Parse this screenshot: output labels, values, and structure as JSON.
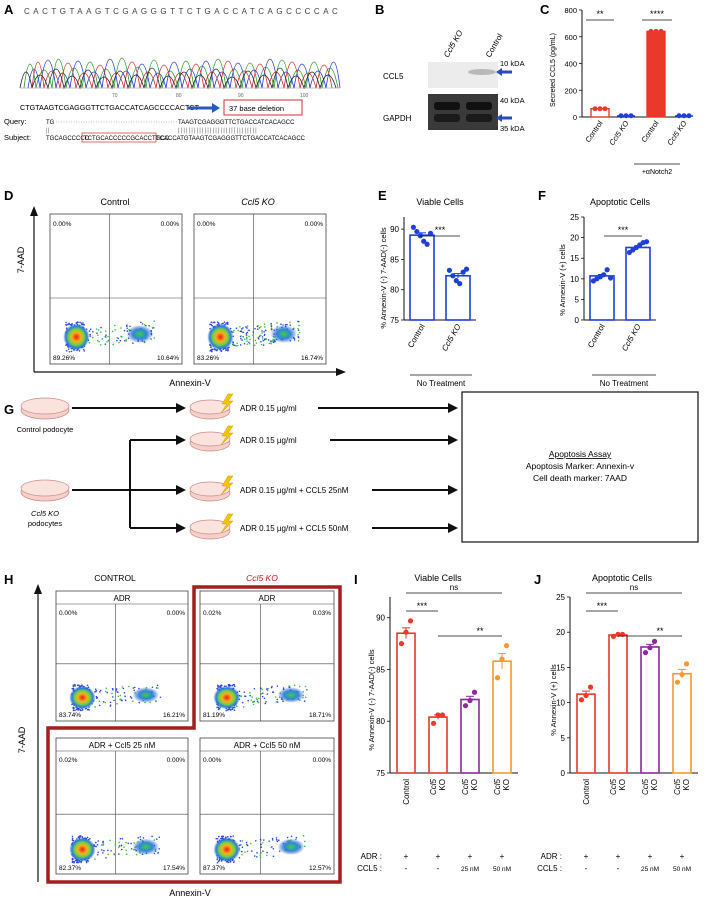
{
  "panel_labels": {
    "A": "A",
    "B": "B",
    "C": "C",
    "D": "D",
    "E": "E",
    "F": "F",
    "G": "G",
    "H": "H",
    "I": "I",
    "J": "J"
  },
  "panelA": {
    "sequence_top": "CACTGTAAGTCGAGGGTTCTGACCATCAGCCCCAC",
    "ticks": [
      "70",
      "80",
      "90",
      "100"
    ],
    "read": "CTGTAAGTCGAGGGTTCTGACCATCAGCCCCACTCT",
    "deletion_label": "37 base deletion",
    "query_label": "Query:",
    "subject_label": "Subject:",
    "query_seq_left": "TG",
    "query_seq_right": "TAAGTCGAGGGTTCTGACCATCACAGCC",
    "subject_seq_left": "TGCAGCCCCC",
    "subject_seq_boxed": "TCTGCACCCCCGCACCTGCC",
    "subject_seq_right": "TCACCATGTAAGTCGAGGGTTCTGACCATCACAGCC"
  },
  "panelB": {
    "lanes": [
      "Ccl5 KO",
      "Control"
    ],
    "row1": "CCL5",
    "row2": "GAPDH",
    "marker1": "10 kDA",
    "marker2": "40 kDA",
    "marker3": "35 kDA"
  },
  "panelC": {
    "ylabel": "Secreted CCL5 (pg/mL)",
    "yticks": [
      "0",
      "200",
      "400",
      "600",
      "800"
    ],
    "categories": [
      "Control",
      "Ccl5 KO",
      "Control",
      "Ccl5 KO"
    ],
    "group_label": "+αNotch2",
    "sig1": "**",
    "sig2": "****"
  },
  "panelD": {
    "title_left": "Control",
    "title_right": "Ccl5 KO",
    "yaxis": "7-AAD",
    "xaxis": "Annexin-V",
    "left_q": [
      "0.00%",
      "0.00%",
      "89.26%",
      "10.64%"
    ],
    "right_q": [
      "0.00%",
      "0.00%",
      "83.26%",
      "16.74%"
    ]
  },
  "panelE": {
    "title": "Viable Cells",
    "ylabel": "% Annexin-V (-) 7-AAD(-) cells",
    "yticks": [
      "75",
      "80",
      "85",
      "90"
    ],
    "categories": [
      "Control",
      "Ccl5 KO"
    ],
    "sig": "***",
    "treatment": "No Treatment"
  },
  "panelF": {
    "title": "Apoptotic Cells",
    "ylabel": "% Annexin-V (+) cells",
    "yticks": [
      "0",
      "5",
      "10",
      "15",
      "20",
      "25"
    ],
    "categories": [
      "Control",
      "Ccl5 KO"
    ],
    "sig": "***",
    "treatment": "No Treatment"
  },
  "panelG": {
    "control_label": "Control podocyte",
    "ko_label_line1": "Ccl5 KO",
    "ko_label_line2": "podocytes",
    "conds": [
      "ADR 0.15 µg/ml",
      "ADR 0.15 µg/ml",
      "ADR 0.15 µg/ml + CCL5 25nM",
      "ADR 0.15 µg/ml + CCL5 50nM"
    ],
    "assay_title": "Apoptosis Assay",
    "assay_line1": "Apoptosis Marker: Annexin-v",
    "assay_line2": "Cell death marker: 7AAD"
  },
  "panelH": {
    "control_title": "CONTROL",
    "ko_title": "Ccl5 KO",
    "yaxis": "7-AAD",
    "xaxis": "Annexin-V",
    "plots": [
      {
        "label": "ADR",
        "q": [
          "0.00%",
          "0.00%",
          "83.74%",
          "16.21%"
        ]
      },
      {
        "label": "ADR",
        "q": [
          "0.02%",
          "0.03%",
          "81.19%",
          "18.71%"
        ]
      },
      {
        "label": "ADR + Ccl5 25 nM",
        "q": [
          "0.02%",
          "0.00%",
          "82.37%",
          "17.54%"
        ]
      },
      {
        "label": "ADR + Ccl5 50 nM",
        "q": [
          "0.00%",
          "0.00%",
          "87.37%",
          "12.57%"
        ]
      }
    ]
  },
  "panelI": {
    "title": "Viable Cells",
    "ylabel": "% Annexin-V (-) 7-AAD(-) cells",
    "yticks": [
      "75",
      "80",
      "85",
      "90"
    ],
    "sig_ns": "ns",
    "sig1": "***",
    "sig2": "**"
  },
  "panelJ": {
    "title": "Apoptotic Cells",
    "ylabel": "% Annexin-V (+) cells",
    "yticks": [
      "0",
      "5",
      "10",
      "15",
      "20",
      "25"
    ],
    "sig_ns": "ns",
    "sig1": "***",
    "sig2": "**"
  },
  "bottom_table": {
    "adr_label": "ADR :",
    "ccl5_label": "CCL5 :",
    "adr": [
      "+",
      "+",
      "+",
      "+"
    ],
    "ccl5": [
      "-",
      "-",
      "25 nM",
      "50 nM"
    ],
    "categories": [
      "Control",
      "Ccl5 KO",
      "Ccl5 KO",
      "Ccl5 KO"
    ]
  },
  "colors": {
    "red": "#e8392b",
    "blue": "#1f3fd9",
    "purple": "#8a2a9b",
    "orange": "#f59a2a",
    "darkred": "#a51d1d"
  },
  "chart_data": [
    {
      "type": "bar",
      "title": "",
      "ylabel": "Secreted CCL5 (pg/mL)",
      "categories": [
        "Control",
        "Ccl5 KO",
        "Control",
        "Ccl5 KO"
      ],
      "values": [
        62,
        2,
        640,
        2
      ],
      "ylim": [
        0,
        800
      ]
    },
    {
      "type": "bar",
      "title": "Viable Cells",
      "ylabel": "% Annexin-V (-) 7-AAD(-) cells",
      "categories": [
        "Control",
        "Ccl5 KO"
      ],
      "values": [
        89.0,
        82.3
      ],
      "ylim": [
        75,
        92
      ],
      "points": [
        [
          90.3,
          89.6,
          88.9,
          88.0,
          87.5,
          89.3
        ],
        [
          83.2,
          82.3,
          81.5,
          81.0,
          82.9,
          83.4
        ]
      ]
    },
    {
      "type": "bar",
      "title": "Apoptotic Cells",
      "ylabel": "% Annexin-V (+) cells",
      "categories": [
        "Control",
        "Ccl5 KO"
      ],
      "values": [
        10.7,
        17.6
      ],
      "ylim": [
        0,
        25
      ],
      "points": [
        [
          9.5,
          10.0,
          10.5,
          11.0,
          12.2,
          10.2
        ],
        [
          16.4,
          17.0,
          17.6,
          18.2,
          18.8,
          19.0
        ]
      ]
    },
    {
      "type": "bar",
      "title": "Viable Cells",
      "ylabel": "% Annexin-V (-) 7-AAD(-) cells",
      "categories": [
        "Control",
        "Ccl5 KO",
        "Ccl5 KO",
        "Ccl5 KO"
      ],
      "values": [
        88.5,
        80.4,
        82.1,
        85.8
      ],
      "ylim": [
        75,
        92
      ],
      "points": [
        [
          87.5,
          88.6,
          89.7
        ],
        [
          79.8,
          80.6,
          80.6
        ],
        [
          81.5,
          82.0,
          82.8
        ],
        [
          84.2,
          86.0,
          87.3
        ]
      ]
    },
    {
      "type": "bar",
      "title": "Apoptotic Cells",
      "ylabel": "% Annexin-V (+) cells",
      "categories": [
        "Control",
        "Ccl5 KO",
        "Ccl5 KO",
        "Ccl5 KO"
      ],
      "values": [
        11.2,
        19.6,
        17.9,
        14.1
      ],
      "ylim": [
        0,
        25
      ],
      "points": [
        [
          10.4,
          11.0,
          12.2
        ],
        [
          19.4,
          19.7,
          19.7
        ],
        [
          17.1,
          17.8,
          18.7
        ],
        [
          12.9,
          14.0,
          15.5
        ]
      ]
    }
  ]
}
